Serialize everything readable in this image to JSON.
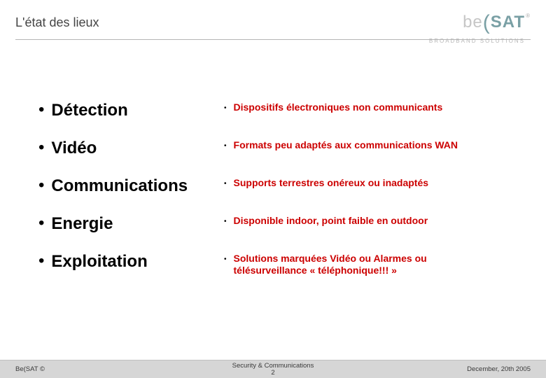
{
  "header": {
    "title": "L'état des lieux"
  },
  "logo": {
    "part1": "be",
    "paren": "(",
    "part2": "SAT",
    "corner": "®",
    "subtitle": "BROADBAND SOLUTIONS"
  },
  "rows": [
    {
      "left": "Détection",
      "right": "Dispositifs électroniques non communicants"
    },
    {
      "left": "Vidéo",
      "right": "Formats peu adaptés aux communications WAN"
    },
    {
      "left": "Communications",
      "right": "Supports terrestres onéreux ou inadaptés"
    },
    {
      "left": "Energie",
      "right": "Disponible indoor, point faible en outdoor"
    },
    {
      "left": "Exploitation",
      "right": "Solutions marquées Vidéo ou Alarmes ou télésurveillance « téléphonique!!! »"
    }
  ],
  "footer": {
    "left": "Be(SAT ©",
    "center_line1": "Security & Communications",
    "center_line2": "2",
    "right": "December, 20th 2005"
  },
  "colors": {
    "right_text": "#cc0000",
    "footer_bg": "#d6d6d6"
  }
}
